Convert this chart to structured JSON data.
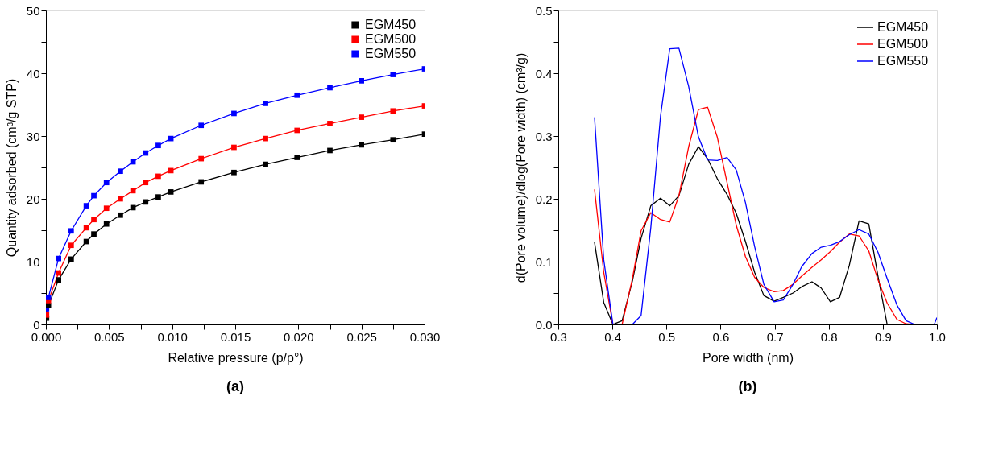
{
  "chart_data": [
    {
      "type": "line",
      "xlabel": "Relative pressure (p/p°)",
      "ylabel": "Quantity adsorbed (cm³/g STP)",
      "annotations": [
        "(a)"
      ],
      "marker": "square",
      "legend": "top right",
      "grid": false,
      "x": [
        5e-05,
        0.0002,
        0.001,
        0.002,
        0.0032,
        0.0038,
        0.0048,
        0.0059,
        0.0069,
        0.0079,
        0.0089,
        0.0099,
        0.0123,
        0.0149,
        0.0174,
        0.0199,
        0.0225,
        0.025,
        0.0275,
        0.03
      ],
      "series": [
        {
          "name": "EGM450",
          "color": "#000000",
          "values": [
            1.0,
            3.0,
            7.1,
            10.4,
            13.2,
            14.4,
            16.0,
            17.4,
            18.6,
            19.5,
            20.3,
            21.1,
            22.7,
            24.2,
            25.5,
            26.6,
            27.7,
            28.6,
            29.4,
            30.3
          ]
        },
        {
          "name": "EGM500",
          "color": "#ff0000",
          "values": [
            1.5,
            3.8,
            8.2,
            12.6,
            15.4,
            16.7,
            18.5,
            20.0,
            21.3,
            22.6,
            23.6,
            24.5,
            26.4,
            28.2,
            29.6,
            30.9,
            32.0,
            33.0,
            34.0,
            34.8
          ]
        },
        {
          "name": "EGM550",
          "color": "#0000ff",
          "values": [
            2.5,
            4.3,
            10.5,
            14.9,
            18.9,
            20.5,
            22.6,
            24.4,
            25.9,
            27.3,
            28.5,
            29.6,
            31.7,
            33.6,
            35.2,
            36.5,
            37.7,
            38.8,
            39.8,
            40.7
          ]
        }
      ],
      "xlim": [
        0,
        0.03
      ],
      "ylim": [
        0,
        50
      ],
      "xticks": [
        {
          "value": 0,
          "label": "0.000"
        },
        {
          "value": 0.0025,
          "label": null
        },
        {
          "value": 0.005,
          "label": "0.005"
        },
        {
          "value": 0.0075,
          "label": null
        },
        {
          "value": 0.01,
          "label": "0.010"
        },
        {
          "value": 0.0125,
          "label": null
        },
        {
          "value": 0.015,
          "label": "0.015"
        },
        {
          "value": 0.0175,
          "label": null
        },
        {
          "value": 0.02,
          "label": "0.020"
        },
        {
          "value": 0.0225,
          "label": null
        },
        {
          "value": 0.025,
          "label": "0.025"
        },
        {
          "value": 0.0275,
          "label": null
        },
        {
          "value": 0.03,
          "label": "0.030"
        }
      ],
      "yticks": [
        0,
        {
          "value": 5,
          "label": null
        },
        10,
        {
          "value": 15,
          "label": null
        },
        20,
        {
          "value": 25,
          "label": null
        },
        30,
        {
          "value": 35,
          "label": null
        },
        40,
        {
          "value": 45,
          "label": null
        },
        50
      ]
    },
    {
      "type": "line",
      "xlabel": "Pore width (nm)",
      "ylabel": "d(Pore volume)/dlog(Pore width) (cm³/g)",
      "annotations": [
        "(b)"
      ],
      "marker": "none",
      "legend": "top right",
      "grid": false,
      "series": [
        {
          "name": "EGM450",
          "color": "#000000",
          "x": [
            0.367,
            0.384,
            0.401,
            0.418,
            0.437,
            0.453,
            0.471,
            0.489,
            0.506,
            0.523,
            0.541,
            0.559,
            0.576,
            0.594,
            0.612,
            0.629,
            0.646,
            0.663,
            0.68,
            0.699,
            0.716,
            0.734,
            0.75,
            0.769,
            0.786,
            0.803,
            0.82,
            0.838,
            0.856,
            0.874,
            0.891,
            0.908
          ],
          "values": [
            0.131,
            0.035,
            0,
            0.006,
            0.069,
            0.137,
            0.189,
            0.201,
            0.189,
            0.205,
            0.255,
            0.283,
            0.264,
            0.232,
            0.207,
            0.177,
            0.132,
            0.083,
            0.046,
            0.037,
            0.043,
            0.05,
            0.06,
            0.068,
            0.058,
            0.036,
            0.043,
            0.094,
            0.165,
            0.16,
            0.077,
            0
          ]
        },
        {
          "name": "EGM500",
          "color": "#ff0000",
          "x": [
            0.367,
            0.384,
            0.401,
            0.418,
            0.437,
            0.453,
            0.471,
            0.489,
            0.506,
            0.523,
            0.541,
            0.559,
            0.576,
            0.594,
            0.612,
            0.629,
            0.646,
            0.663,
            0.68,
            0.699,
            0.716,
            0.734,
            0.75,
            0.769,
            0.786,
            0.803,
            0.82,
            0.838,
            0.856,
            0.874,
            0.891,
            0.908,
            0.926,
            0.943,
            0.959,
            1.0
          ],
          "values": [
            0.215,
            0.083,
            0,
            0,
            0.073,
            0.149,
            0.178,
            0.167,
            0.163,
            0.205,
            0.283,
            0.342,
            0.346,
            0.298,
            0.226,
            0.158,
            0.108,
            0.075,
            0.059,
            0.052,
            0.054,
            0.064,
            0.077,
            0.091,
            0.103,
            0.116,
            0.131,
            0.144,
            0.141,
            0.117,
            0.071,
            0.034,
            0.008,
            0.001,
            0,
            0
          ]
        },
        {
          "name": "EGM550",
          "color": "#0000ff",
          "x": [
            0.367,
            0.384,
            0.401,
            0.418,
            0.437,
            0.453,
            0.471,
            0.489,
            0.506,
            0.523,
            0.541,
            0.559,
            0.576,
            0.594,
            0.612,
            0.629,
            0.646,
            0.663,
            0.68,
            0.699,
            0.716,
            0.734,
            0.75,
            0.769,
            0.786,
            0.803,
            0.82,
            0.838,
            0.856,
            0.874,
            0.891,
            0.908,
            0.926,
            0.943,
            0.959,
            0.995,
            1.0
          ],
          "values": [
            0.33,
            0.103,
            0,
            0,
            0,
            0.014,
            0.154,
            0.332,
            0.439,
            0.44,
            0.379,
            0.299,
            0.262,
            0.261,
            0.266,
            0.246,
            0.194,
            0.124,
            0.064,
            0.036,
            0.039,
            0.064,
            0.092,
            0.113,
            0.123,
            0.126,
            0.132,
            0.143,
            0.151,
            0.144,
            0.115,
            0.073,
            0.031,
            0.006,
            0,
            0,
            0.011
          ]
        }
      ],
      "xlim": [
        0.3,
        1.0
      ],
      "ylim": [
        0,
        0.5
      ],
      "xticks": [
        0.3,
        {
          "value": 0.35,
          "label": null
        },
        0.4,
        {
          "value": 0.45,
          "label": null
        },
        0.5,
        {
          "value": 0.55,
          "label": null
        },
        0.6,
        {
          "value": 0.65,
          "label": null
        },
        0.7,
        {
          "value": 0.75,
          "label": null
        },
        0.8,
        {
          "value": 0.85,
          "label": null
        },
        0.9,
        {
          "value": 0.95,
          "label": null
        },
        {
          "value": 1.0,
          "label": "1.0"
        }
      ],
      "yticks": [
        {
          "value": 0,
          "label": "0.0"
        },
        {
          "value": 0.05,
          "label": null
        },
        0.1,
        {
          "value": 0.15,
          "label": null
        },
        0.2,
        {
          "value": 0.25,
          "label": null
        },
        0.3,
        {
          "value": 0.35,
          "label": null
        },
        0.4,
        {
          "value": 0.45,
          "label": null
        },
        0.5
      ]
    }
  ]
}
